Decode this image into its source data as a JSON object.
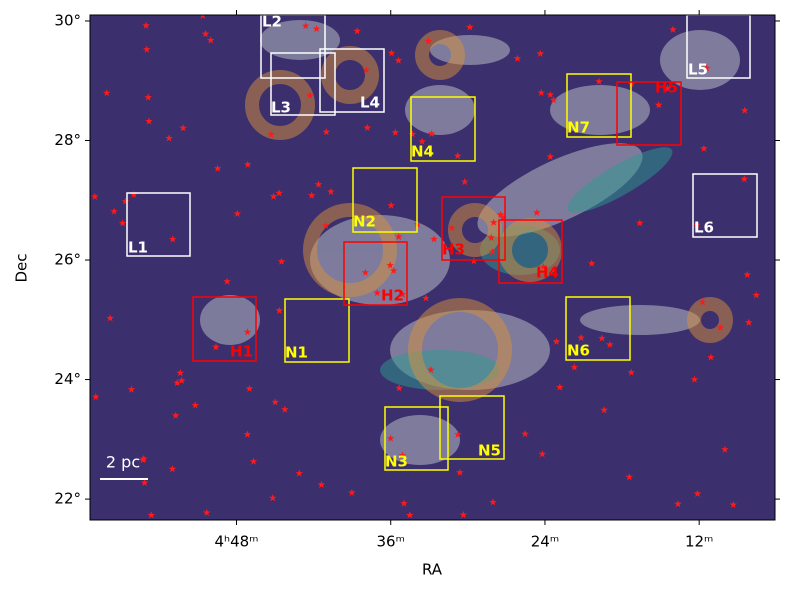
{
  "chart_data": {
    "type": "image",
    "xlabel": "RA",
    "ylabel": "Dec",
    "xlim": [
      59.4,
      6.1
    ],
    "ylim": [
      21.65,
      30.1
    ],
    "xticks": [
      {
        "value": 48,
        "label": "4ʰ48ᵐ"
      },
      {
        "value": 36,
        "label": "36ᵐ"
      },
      {
        "value": 24,
        "label": "24ᵐ"
      },
      {
        "value": 12,
        "label": "12ᵐ"
      }
    ],
    "yticks": [
      {
        "value": 22,
        "label": "22°"
      },
      {
        "value": 24,
        "label": "24°"
      },
      {
        "value": 26,
        "label": "26°"
      },
      {
        "value": 28,
        "label": "28°"
      },
      {
        "value": 30,
        "label": "30°"
      }
    ],
    "scale_bar": "2 pc",
    "regions": [
      {
        "label": "L1",
        "color": "#ffffff"
      },
      {
        "label": "L2",
        "color": "#ffffff"
      },
      {
        "label": "L3",
        "color": "#ffffff"
      },
      {
        "label": "L4",
        "color": "#ffffff"
      },
      {
        "label": "L5",
        "color": "#ffffff"
      },
      {
        "label": "L6",
        "color": "#ffffff"
      },
      {
        "label": "N1",
        "color": "#ffff00"
      },
      {
        "label": "N2",
        "color": "#ffff00"
      },
      {
        "label": "N3",
        "color": "#ffff00"
      },
      {
        "label": "N4",
        "color": "#ffff00"
      },
      {
        "label": "N5",
        "color": "#ffff00"
      },
      {
        "label": "N6",
        "color": "#ffff00"
      },
      {
        "label": "N7",
        "color": "#ffff00"
      },
      {
        "label": "H1",
        "color": "#ff0000"
      },
      {
        "label": "H2",
        "color": "#ff0000"
      },
      {
        "label": "H3",
        "color": "#ff0000"
      },
      {
        "label": "H4",
        "color": "#ff0000"
      },
      {
        "label": "H5",
        "color": "#ff0000"
      }
    ]
  }
}
